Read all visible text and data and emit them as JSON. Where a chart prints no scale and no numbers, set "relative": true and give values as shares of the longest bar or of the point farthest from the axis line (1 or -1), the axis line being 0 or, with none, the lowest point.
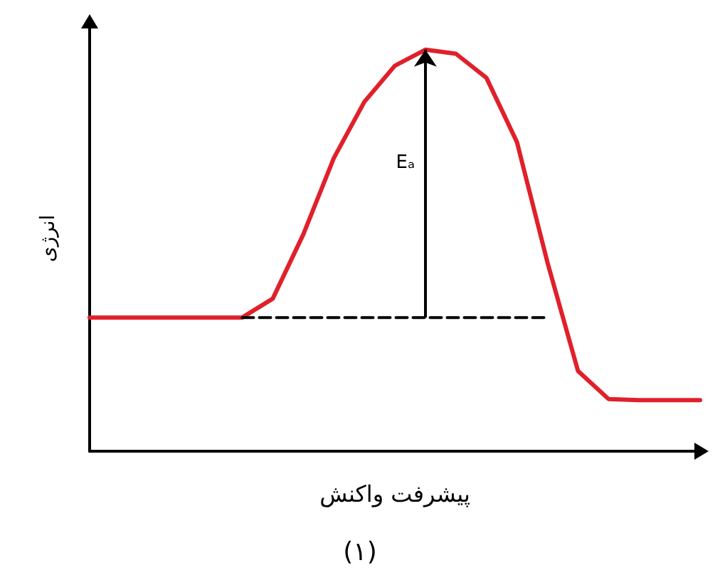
{
  "chart_data": {
    "type": "line",
    "relative": true,
    "xlabel": "پیشرفت واکنش",
    "ylabel": "انرژی",
    "annotations": [
      "Eₐ",
      "(۱)"
    ],
    "categories": [
      null,
      null,
      null,
      null,
      null,
      null,
      null,
      null,
      null,
      null,
      null,
      null,
      null,
      null,
      null,
      null,
      null,
      null,
      null,
      null,
      null
    ],
    "series": [
      {
        "color": "#e0202a",
        "values": [
          0.333,
          0.333,
          0.333,
          0.333,
          0.333,
          0.333,
          0.38,
          0.54,
          0.73,
          0.87,
          0.96,
          1.0,
          0.99,
          0.93,
          0.77,
          0.47,
          0.2,
          0.13,
          0.127,
          0.127,
          0.127
        ]
      },
      {
        "color": "#000000",
        "line_style": "dashed",
        "values": [
          null,
          null,
          null,
          null,
          null,
          0.333,
          0.333,
          0.333,
          0.333,
          0.333,
          0.333,
          0.333,
          0.333,
          0.333,
          0.333,
          0.333,
          null,
          null,
          null,
          null,
          null
        ]
      }
    ],
    "marker": "none",
    "grid": false
  }
}
